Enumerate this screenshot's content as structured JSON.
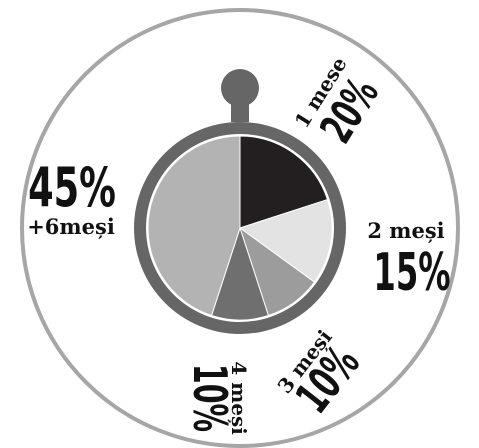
{
  "chart_data": {
    "type": "pie",
    "categories": [
      "1 mese",
      "2 meși",
      "3 meși",
      "4 meși",
      "+6meși"
    ],
    "values": [
      20,
      15,
      10,
      10,
      45
    ],
    "value_labels": [
      "20%",
      "15%",
      "10%",
      "10%",
      "45%"
    ],
    "title": "",
    "legend": "none"
  },
  "colors": {
    "slices": [
      "#231f20",
      "#e3e3e3",
      "#9c9c9c",
      "#6f6f6f",
      "#b3b3b3"
    ],
    "frame": "#666666",
    "outer_ring": "#a6a6a6",
    "background": "#ffffff",
    "text": "#111111"
  },
  "icons": [
    "stopwatch-icon"
  ]
}
